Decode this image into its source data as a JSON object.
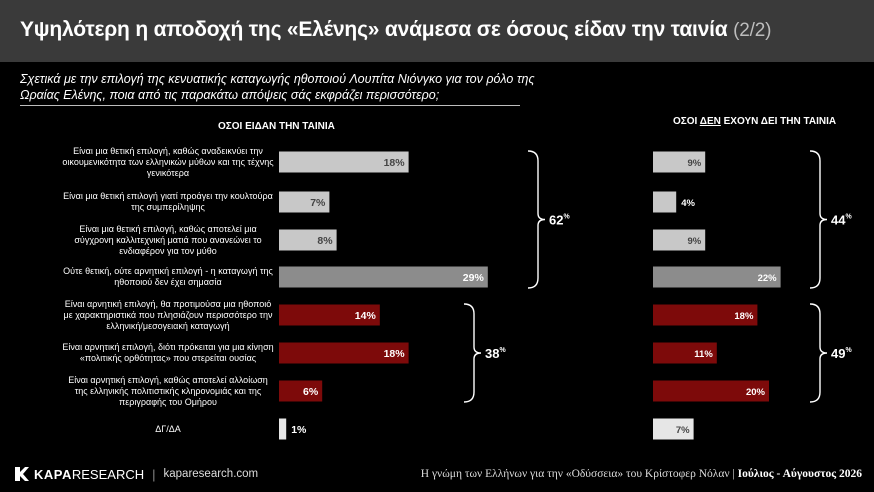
{
  "header": {
    "title": "Υψηλότερη η αποδοχή της «Ελένης» ανάμεσα σε όσους είδαν την ταινία",
    "part": "(2/2)"
  },
  "question": "Σχετικά με την επιλογή της κενυατικής καταγωγής ηθοποιού Λουπίτα Νιόνγκο για τον ρόλο της Ωραίας Ελένης, ποια από τις παρακάτω απόψεις σάς εκφράζει περισσότερο;",
  "colors": {
    "positive": "#c8c8c8",
    "neutral": "#8c8c8c",
    "negative": "#7d0a0a",
    "dk": "#e6e6e6"
  },
  "chart_data": {
    "type": "bar",
    "categories": [
      "Είναι μια θετική επιλογή, καθώς αναδεικνύει την οικουμενικότητα των ελληνικών μύθων και της τέχνης γενικότερα",
      "Είναι μια θετική επιλογή γιατί προάγει την κουλτούρα της συμπερίληψης",
      "Είναι μια θετική επιλογή, καθώς αποτελεί μια σύγχρονη καλλιτεχνική ματιά που ανανεώνει το ενδιαφέρον για τον μύθο",
      "Ούτε θετική, ούτε αρνητική επιλογή - η καταγωγή της ηθοποιού δεν έχει σημασία",
      "Είναι αρνητική επιλογή, θα προτιμούσα μια ηθοποιό με χαρακτηριστικά που πλησιάζουν περισσότερο την ελληνική/μεσογειακή καταγωγή",
      "Είναι αρνητική επιλογή, διότι πρόκειται για μια κίνηση «πολιτικής ορθότητας» που στερείται ουσίας",
      "Είναι αρνητική επιλογή, καθώς αποτελεί αλλοίωση της ελληνικής πολιτιστικής κληρονομιάς και της περιγραφής του Ομήρου",
      "ΔΓ/ΔΑ"
    ],
    "categoryTypes": [
      "positive",
      "positive",
      "positive",
      "neutral",
      "negative",
      "negative",
      "negative",
      "dk"
    ],
    "series": [
      {
        "name": "ΟΣΟΙ ΕΙΔΑΝ ΤΗΝ ΤΑΙΝΙΑ",
        "values": [
          18,
          7,
          8,
          29,
          14,
          18,
          6,
          1
        ]
      },
      {
        "name": "ΟΣΟΙ ΔΕΝ ΕΧΟΥΝ ΔΕΙ ΤΗΝ ΤΑΙΝΙΑ",
        "values": [
          9,
          4,
          9,
          22,
          18,
          11,
          20,
          7
        ]
      }
    ],
    "series_header": {
      "prefix": "ΟΣΟΙ ",
      "underlined": "ΔΕΝ",
      "suffix": " ΕΧΟΥΝ ΔΕΙ ΤΗΝ ΤΑΙΝΙΑ"
    },
    "groups": [
      {
        "series": 0,
        "from": 0,
        "to": 3,
        "value": "62",
        "unit": "%"
      },
      {
        "series": 0,
        "from": 4,
        "to": 6,
        "value": "38",
        "unit": "%"
      },
      {
        "series": 1,
        "from": 0,
        "to": 3,
        "value": "44",
        "unit": "%"
      },
      {
        "series": 1,
        "from": 4,
        "to": 6,
        "value": "49",
        "unit": "%"
      }
    ],
    "valueSuffix": "%"
  },
  "footer": {
    "brand_bold": "KAPA",
    "brand_rest": " RESEARCH",
    "site": "kaparesearch.com",
    "source": "Η γνώμη των Ελλήνων για την «Οδύσσεια» του Κρίστοφερ Νόλαν | ",
    "date": "Ιούλιος - Αύγουστος 2026"
  }
}
